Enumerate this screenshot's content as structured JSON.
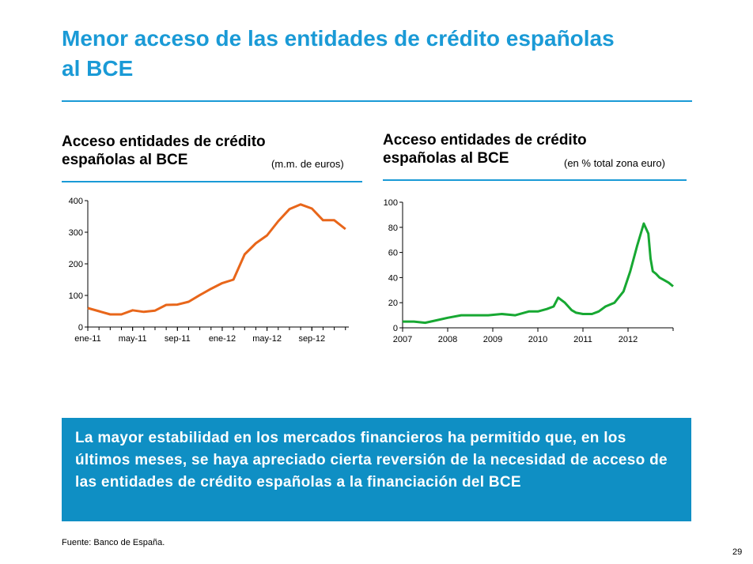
{
  "slide": {
    "title": "Menor acceso de las entidades de crédito españolas al BCE",
    "callout": "La mayor estabilidad en los mercados financieros ha permitido que, en los últimos meses, se haya apreciado cierta reversión de la necesidad de acceso de las entidades de crédito españolas a la financiación del BCE",
    "source": "Fuente: Banco de España.",
    "page_number": "29"
  },
  "panels": [
    {
      "title": "Acceso entidades de crédito españolas al BCE",
      "unit": "(m.m. de euros)"
    },
    {
      "title": "Acceso entidades de crédito españolas al BCE",
      "unit": "(en % total zona euro)"
    }
  ],
  "chart_data": [
    {
      "type": "line",
      "title": "Acceso entidades de crédito españolas al BCE",
      "unit": "(m.m. de euros)",
      "color": "#e8661a",
      "ylim": [
        0,
        400
      ],
      "yticks": [
        "0",
        "100",
        "200",
        "300",
        "400"
      ],
      "xticks": [
        "ene-11",
        "may-11",
        "sep-11",
        "ene-12",
        "may-12",
        "sep-12"
      ],
      "xlim": [
        0,
        23.3
      ],
      "tick_positions": [
        0,
        4,
        8,
        12,
        16,
        20
      ],
      "series": [
        {
          "x": [
            0,
            1,
            2,
            3,
            4,
            5,
            6,
            7,
            8,
            9,
            10,
            11,
            12,
            13,
            14,
            15,
            16,
            17,
            18,
            19,
            20,
            21,
            22,
            23
          ],
          "values": [
            60,
            50,
            40,
            40,
            53,
            48,
            52,
            70,
            71,
            80,
            101,
            121,
            139,
            150,
            230,
            265,
            290,
            335,
            373,
            388,
            375,
            338,
            338,
            310
          ]
        }
      ]
    },
    {
      "type": "line",
      "title": "Acceso entidades de crédito españolas al BCE",
      "unit": "(en % total zona euro)",
      "color": "#17a832",
      "ylim": [
        0,
        100
      ],
      "yticks": [
        "0",
        "20",
        "40",
        "60",
        "80",
        "100"
      ],
      "xticks": [
        "2007",
        "2008",
        "2009",
        "2010",
        "2011",
        "2012"
      ],
      "xlim": [
        2007,
        2013.0
      ],
      "tick_positions": [
        2007,
        2008,
        2009,
        2010,
        2011,
        2012
      ],
      "series": [
        {
          "x": [
            2007.0,
            2007.25,
            2007.5,
            2007.75,
            2008.0,
            2008.3,
            2008.6,
            2008.9,
            2009.2,
            2009.5,
            2009.8,
            2010.0,
            2010.2,
            2010.35,
            2010.45,
            2010.6,
            2010.75,
            2010.85,
            2011.0,
            2011.2,
            2011.35,
            2011.5,
            2011.7,
            2011.9,
            2012.05,
            2012.2,
            2012.35,
            2012.45,
            2012.5,
            2012.55,
            2012.62,
            2012.7,
            2012.8,
            2012.9,
            2013.0
          ],
          "values": [
            5,
            5,
            4,
            6,
            8,
            10,
            10,
            10,
            11,
            10,
            13,
            13,
            15,
            17,
            24,
            20,
            14,
            12,
            11,
            11,
            13,
            17,
            20,
            29,
            45,
            65,
            83,
            75,
            55,
            45,
            43,
            40,
            38,
            36,
            33
          ]
        }
      ]
    }
  ]
}
